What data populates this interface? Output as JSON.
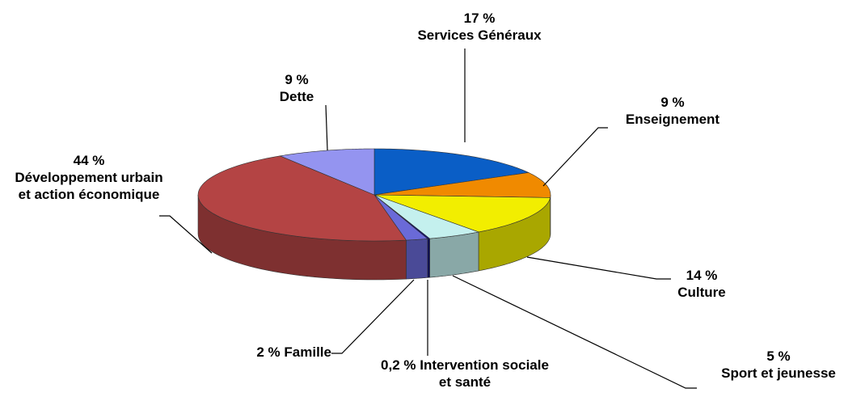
{
  "chart_data": {
    "type": "pie3d",
    "categories": [
      "Services Généraux",
      "Enseignement",
      "Culture",
      "Sport et jeunesse",
      "Intervention sociale et santé",
      "Famille",
      "Développement urbain et action économique",
      "Dette"
    ],
    "values": [
      17,
      9,
      14,
      5,
      0.2,
      2,
      44,
      9
    ],
    "value_labels": [
      "17 %",
      "9 %",
      "14 %",
      "5 %",
      "0,2 %",
      "2 %",
      "44 %",
      "9 %"
    ],
    "colors": [
      "#0a5ec6",
      "#f08a00",
      "#f2ee00",
      "#c4f0ee",
      "#10107a",
      "#6a6ad8",
      "#b44444",
      "#9494f0"
    ]
  }
}
